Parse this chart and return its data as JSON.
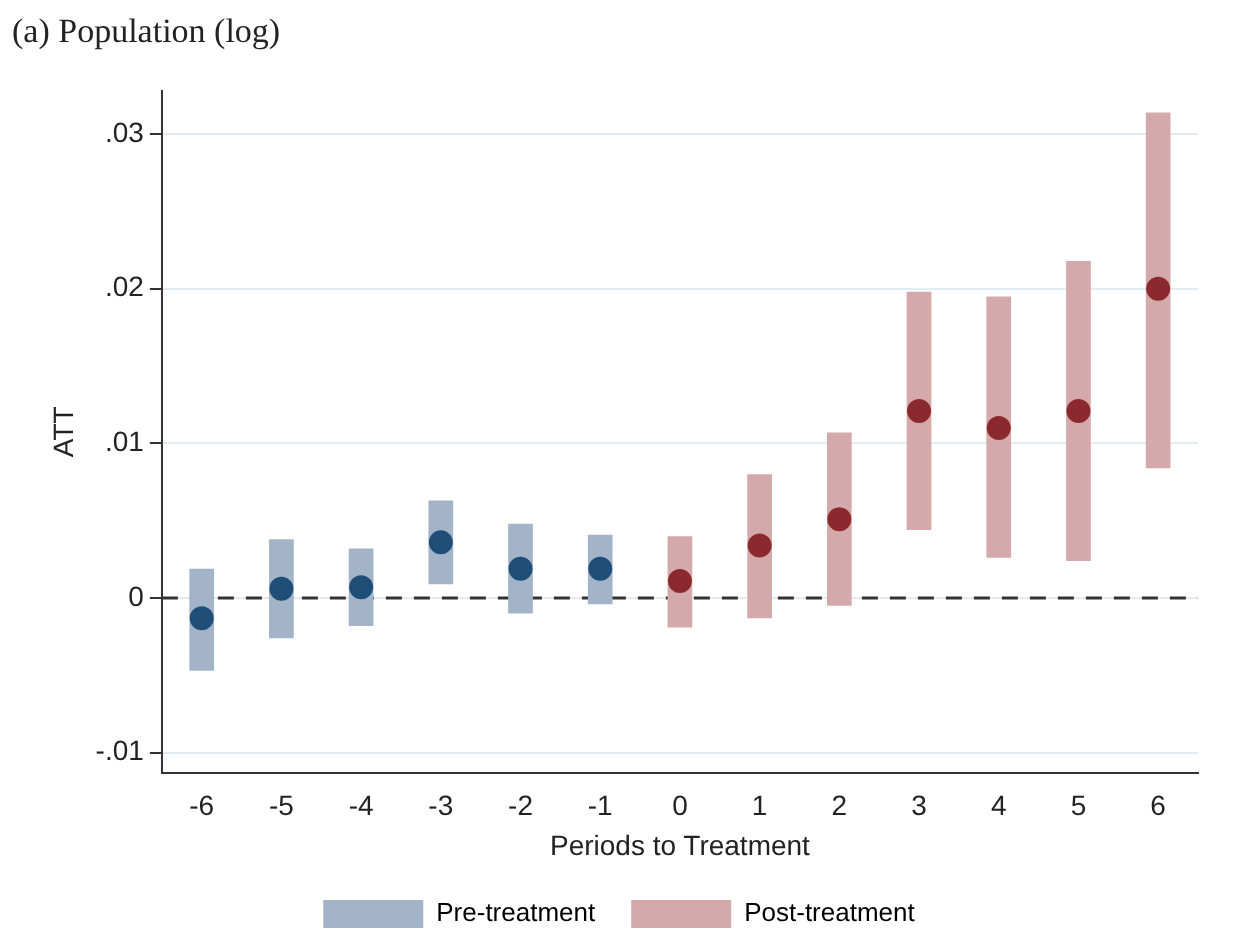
{
  "chart_data": {
    "type": "bar",
    "title": "(a) Population (log)",
    "xlabel": "Periods to Treatment",
    "ylabel": "ATT",
    "categories": [
      "-6",
      "-5",
      "-4",
      "-3",
      "-2",
      "-1",
      "0",
      "1",
      "2",
      "3",
      "4",
      "5",
      "6"
    ],
    "series": [
      {
        "name": "Pre-treatment",
        "color": "#a3b4c8",
        "base": [
          -0.0047,
          -0.0026,
          -0.0018,
          0.0009,
          -0.001,
          -0.0004,
          null,
          null,
          null,
          null,
          null,
          null,
          null
        ],
        "values": [
          0.0066,
          0.0064,
          0.005,
          0.0054,
          0.0058,
          0.0045,
          null,
          null,
          null,
          null,
          null,
          null,
          null
        ]
      },
      {
        "name": "Post-treatment",
        "color": "#d4a9ab",
        "base": [
          null,
          null,
          null,
          null,
          null,
          null,
          -0.0019,
          -0.0013,
          -0.0005,
          0.0044,
          0.0026,
          0.0024,
          0.0084
        ],
        "values": [
          null,
          null,
          null,
          null,
          null,
          null,
          0.0059,
          0.0093,
          0.0112,
          0.0154,
          0.0169,
          0.0194,
          0.023
        ]
      },
      {
        "type": "scatter",
        "color": "#1f4e79",
        "x": [
          "-6",
          "-5",
          "-4",
          "-3",
          "-2",
          "-1"
        ],
        "values": [
          -0.0013,
          0.0006,
          0.0007,
          0.0036,
          0.0019,
          0.0019
        ]
      },
      {
        "type": "scatter",
        "color": "#8b2a2e",
        "x": [
          "0",
          "1",
          "2",
          "3",
          "4",
          "5",
          "6"
        ],
        "values": [
          0.0011,
          0.0034,
          0.0051,
          0.0121,
          0.011,
          0.0121,
          0.02
        ]
      }
    ],
    "ylim": [
      -0.0113,
      0.0328
    ],
    "yticks": [
      {
        "value": -0.01,
        "label": "-.01"
      },
      {
        "value": 0,
        "label": "0"
      },
      {
        "value": 0.01,
        "label": ".01"
      },
      {
        "value": 0.02,
        "label": ".02"
      },
      {
        "value": 0.03,
        "label": ".03"
      }
    ],
    "ref_lines": [
      {
        "axis": "y",
        "value": 0,
        "line_style": "dashed",
        "color": "#333333"
      }
    ],
    "grid": "y",
    "legend": "bottom",
    "marker": "circle"
  }
}
